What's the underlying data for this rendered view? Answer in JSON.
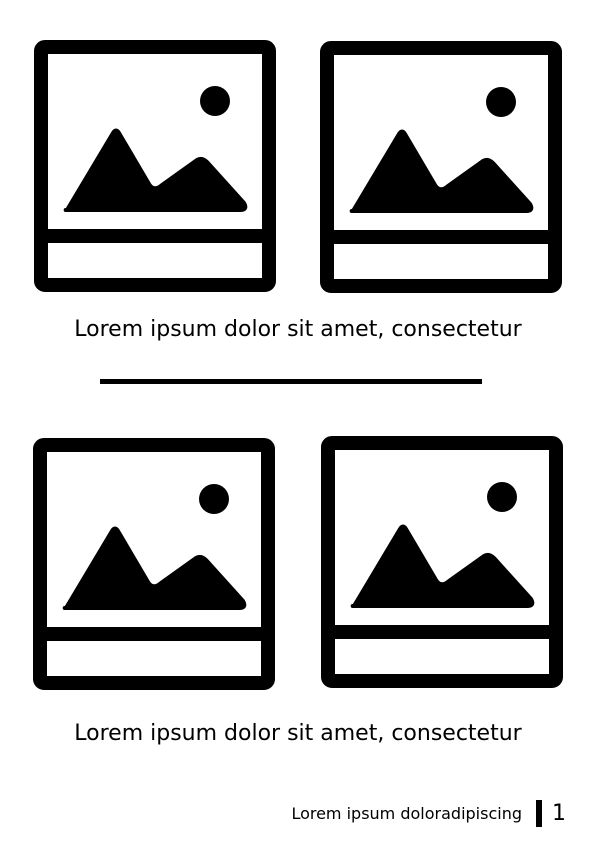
{
  "section_1": {
    "caption": "Lorem ipsum dolor sit amet, consectetur"
  },
  "section_2": {
    "caption": "Lorem ipsum dolor sit amet, consectetur"
  },
  "footer": {
    "text": "Lorem ipsum doloradipiscing",
    "page_number": "1"
  },
  "icons": {
    "photo": "image-placeholder-icon"
  },
  "colors": {
    "ink": "#000000",
    "paper": "#ffffff"
  }
}
